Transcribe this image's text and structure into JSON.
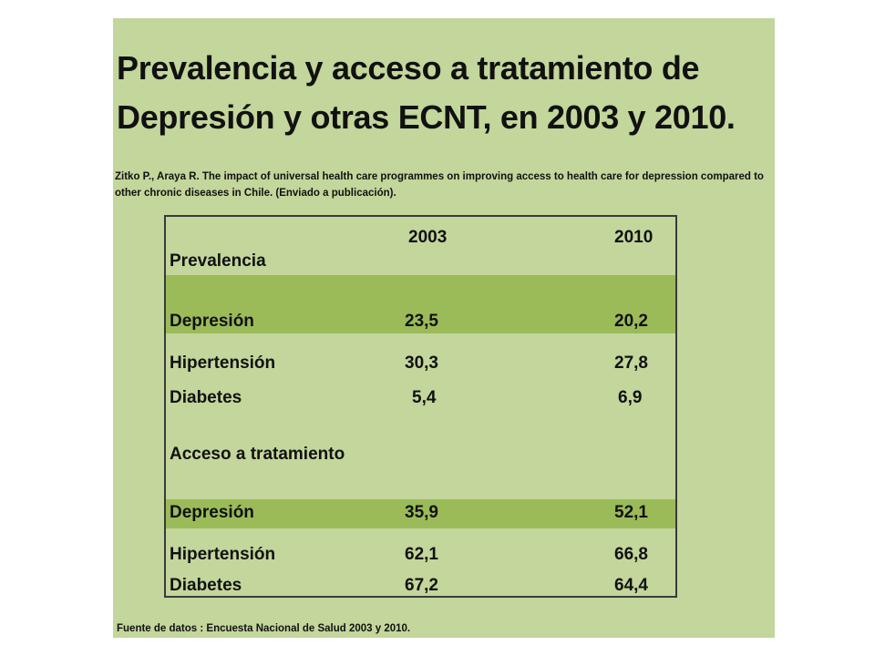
{
  "title": "Prevalencia y acceso a tratamiento de Depresión y otras ECNT, en 2003 y 2010.",
  "citation": "Zitko P., Araya R.  The impact of universal health care programmes on improving access to health care for depression compared to other chronic diseases in Chile.  (Enviado a publicación).",
  "table": {
    "col_2003": "2003",
    "col_2010": "2010",
    "section_prevalence": "Prevalencia",
    "prevalence_rows": [
      {
        "label": "Depresión",
        "v2003": "23,5",
        "v2010": "20,2"
      },
      {
        "label": "Hipertensión",
        "v2003": "30,3",
        "v2010": "27,8"
      },
      {
        "label": "Diabetes",
        "v2003": "5,4",
        "v2010": "6,9"
      }
    ],
    "section_access": "Acceso  a tratamiento",
    "access_rows": [
      {
        "label": "Depresión",
        "v2003": "35,9",
        "v2010": "52,1"
      },
      {
        "label": "Hipertensión",
        "v2003": "62,1",
        "v2010": "66,8"
      },
      {
        "label": "Diabetes",
        "v2003": "67,2",
        "v2010": "64,4"
      }
    ]
  },
  "source": "Fuente de datos : Encuesta Nacional de Salud 2003 y 2010.",
  "colors": {
    "slide_background": "#c3d69b",
    "highlight_row": "#9bbb59",
    "border": "#3a3a3a"
  }
}
